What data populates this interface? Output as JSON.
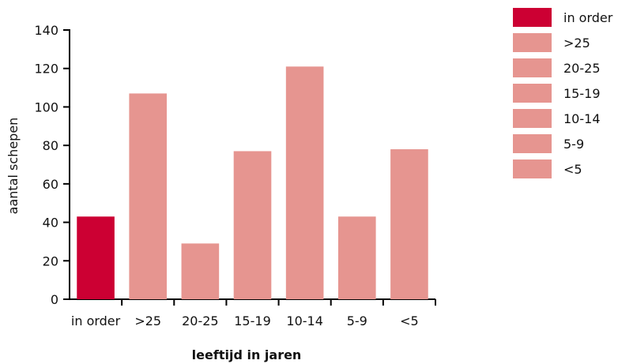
{
  "chart_data": {
    "type": "bar",
    "categories": [
      "in order",
      ">25",
      "20-25",
      "15-19",
      "10-14",
      "5-9",
      "<5"
    ],
    "values": [
      43,
      107,
      29,
      77,
      121,
      43,
      78
    ],
    "colors": [
      "#cc0033",
      "#e69590",
      "#e69590",
      "#e69590",
      "#e69590",
      "#e69590",
      "#e69590"
    ],
    "xlabel": "leeftijd in jaren",
    "ylabel": "aantal schepen",
    "ylim": [
      0,
      140
    ],
    "yticks": [
      0,
      20,
      40,
      60,
      80,
      100,
      120,
      140
    ],
    "grid": false,
    "legend": {
      "placement": "top-right",
      "entries": [
        "in order",
        ">25",
        "20-25",
        "15-19",
        "10-14",
        "5-9",
        "<5"
      ]
    }
  }
}
